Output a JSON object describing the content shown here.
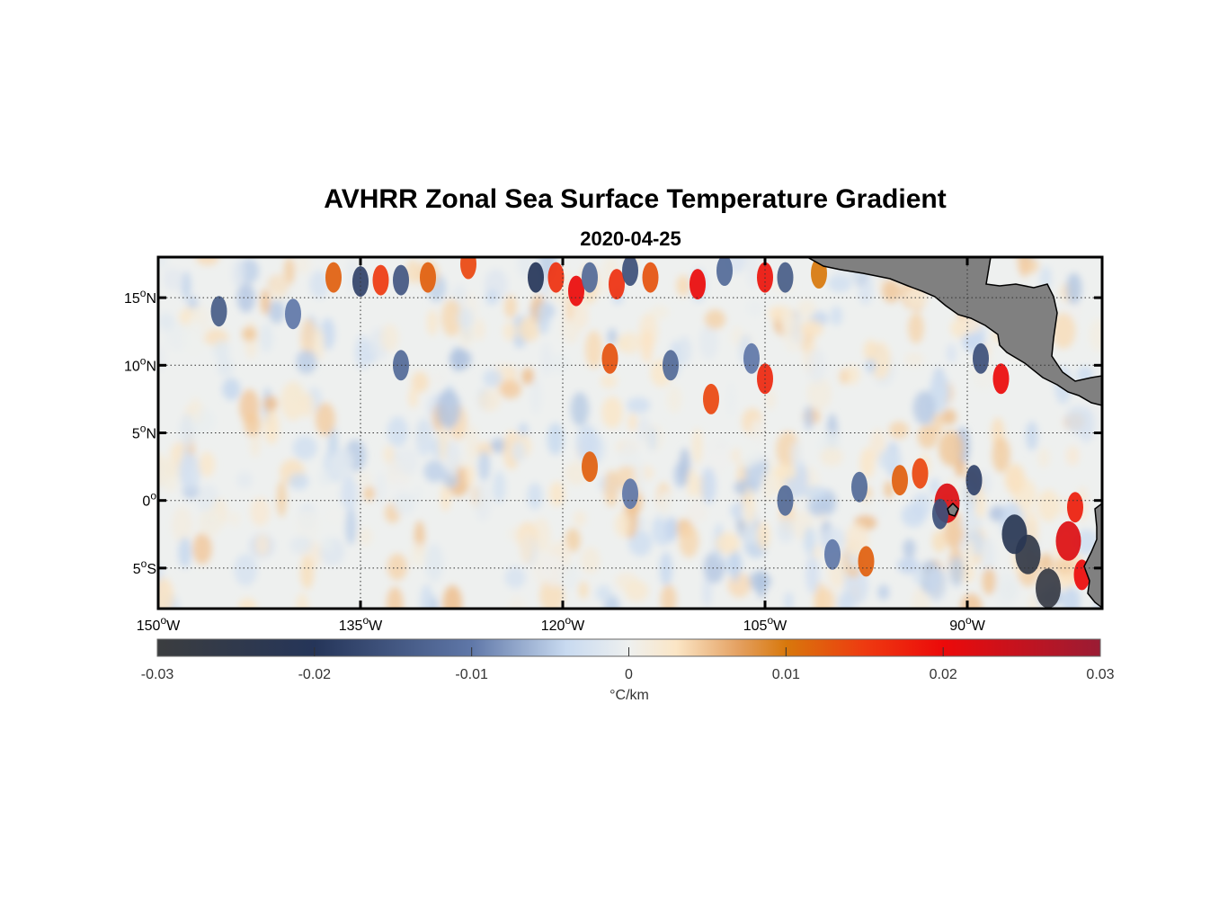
{
  "title": "AVHRR Zonal Sea Surface Temperature Gradient",
  "subtitle": "2020-04-25",
  "map": {
    "projection": "equirectangular",
    "lon_range": [
      -150,
      -80
    ],
    "lat_range": [
      -8,
      18
    ],
    "lon_ticks": [
      {
        "value": -150,
        "num": "150",
        "dir": "W"
      },
      {
        "value": -135,
        "num": "135",
        "dir": "W"
      },
      {
        "value": -120,
        "num": "120",
        "dir": "W"
      },
      {
        "value": -105,
        "num": "105",
        "dir": "W"
      },
      {
        "value": -90,
        "num": "90",
        "dir": "W"
      }
    ],
    "lat_ticks": [
      {
        "value": 15,
        "num": "15",
        "dir": "N"
      },
      {
        "value": 10,
        "num": "10",
        "dir": "N"
      },
      {
        "value": 5,
        "num": "5",
        "dir": "N"
      },
      {
        "value": 0,
        "num": "0",
        "dir": ""
      },
      {
        "value": -5,
        "num": "5",
        "dir": "S"
      }
    ],
    "grid": "dotted",
    "land_color": "#808080",
    "ocean_background": "#eef0ef"
  },
  "colorbar": {
    "label": "°C/km",
    "range": [
      -0.03,
      0.03
    ],
    "ticks": [
      {
        "value": -0.03,
        "label": "-0.03"
      },
      {
        "value": -0.02,
        "label": "-0.02"
      },
      {
        "value": -0.01,
        "label": "-0.01"
      },
      {
        "value": 0,
        "label": "0"
      },
      {
        "value": 0.01,
        "label": "0.01"
      },
      {
        "value": 0.02,
        "label": "0.02"
      },
      {
        "value": 0.03,
        "label": "0.03"
      }
    ],
    "stops": [
      {
        "value": -0.03,
        "color": "#3b3d3f"
      },
      {
        "value": -0.02,
        "color": "#253559"
      },
      {
        "value": -0.01,
        "color": "#5f77a8"
      },
      {
        "value": -0.004,
        "color": "#c8daf0"
      },
      {
        "value": 0,
        "color": "#eef0ef"
      },
      {
        "value": 0.003,
        "color": "#fbe6c6"
      },
      {
        "value": 0.007,
        "color": "#e4a060"
      },
      {
        "value": 0.01,
        "color": "#d8780c"
      },
      {
        "value": 0.015,
        "color": "#ee3a10"
      },
      {
        "value": 0.02,
        "color": "#ec0a0a"
      },
      {
        "value": 0.03,
        "color": "#9a1c34"
      }
    ]
  },
  "chart_data": {
    "type": "heatmap",
    "title": "AVHRR Zonal Sea Surface Temperature Gradient",
    "subtitle": "2020-04-25",
    "unit": "°C/km",
    "features": [
      {
        "lon": -137,
        "lat": 16.5,
        "value": 0.012
      },
      {
        "lon": -135,
        "lat": 16.2,
        "value": -0.018
      },
      {
        "lon": -133.5,
        "lat": 16.3,
        "value": 0.015
      },
      {
        "lon": -132,
        "lat": 16.3,
        "value": -0.015
      },
      {
        "lon": -130,
        "lat": 16.5,
        "value": 0.012
      },
      {
        "lon": -127,
        "lat": 17.5,
        "value": 0.014
      },
      {
        "lon": -122,
        "lat": 16.5,
        "value": -0.02
      },
      {
        "lon": -120.5,
        "lat": 16.5,
        "value": 0.016
      },
      {
        "lon": -119,
        "lat": 15.5,
        "value": 0.02
      },
      {
        "lon": -118,
        "lat": 16.5,
        "value": -0.012
      },
      {
        "lon": -116,
        "lat": 16.0,
        "value": 0.016
      },
      {
        "lon": -115,
        "lat": 17.0,
        "value": -0.016
      },
      {
        "lon": -113.5,
        "lat": 16.5,
        "value": 0.013
      },
      {
        "lon": -110,
        "lat": 16.0,
        "value": 0.02
      },
      {
        "lon": -108,
        "lat": 17.0,
        "value": -0.012
      },
      {
        "lon": -105,
        "lat": 16.5,
        "value": 0.019
      },
      {
        "lon": -103.5,
        "lat": 16.5,
        "value": -0.014
      },
      {
        "lon": -101,
        "lat": 16.8,
        "value": 0.01
      },
      {
        "lon": -145.5,
        "lat": 14.0,
        "value": -0.014
      },
      {
        "lon": -140,
        "lat": 13.8,
        "value": -0.01
      },
      {
        "lon": -132,
        "lat": 10.0,
        "value": -0.012
      },
      {
        "lon": -116.5,
        "lat": 10.5,
        "value": 0.013
      },
      {
        "lon": -112,
        "lat": 10.0,
        "value": -0.012
      },
      {
        "lon": -109,
        "lat": 7.5,
        "value": 0.014
      },
      {
        "lon": -105,
        "lat": 9.0,
        "value": 0.017
      },
      {
        "lon": -106,
        "lat": 10.5,
        "value": -0.01
      },
      {
        "lon": -118,
        "lat": 2.5,
        "value": 0.012
      },
      {
        "lon": -115,
        "lat": 0.5,
        "value": -0.01
      },
      {
        "lon": -103.5,
        "lat": 0.0,
        "value": -0.012
      },
      {
        "lon": -98,
        "lat": 1.0,
        "value": -0.012
      },
      {
        "lon": -95,
        "lat": 1.5,
        "value": 0.012
      },
      {
        "lon": -93.5,
        "lat": 2.0,
        "value": 0.014
      },
      {
        "lon": -91.5,
        "lat": -0.2,
        "value": 0.022
      },
      {
        "lon": -92,
        "lat": -1.0,
        "value": -0.016
      },
      {
        "lon": -89.5,
        "lat": 1.5,
        "value": -0.018
      },
      {
        "lon": -87.5,
        "lat": 9.0,
        "value": 0.02
      },
      {
        "lon": -89,
        "lat": 10.5,
        "value": -0.016
      },
      {
        "lon": -85.5,
        "lat": -4.0,
        "value": -0.026
      },
      {
        "lon": -86.5,
        "lat": -2.5,
        "value": -0.022
      },
      {
        "lon": -84,
        "lat": -6.5,
        "value": -0.028
      },
      {
        "lon": -82.5,
        "lat": -3.0,
        "value": 0.022
      },
      {
        "lon": -82,
        "lat": -0.5,
        "value": 0.018
      },
      {
        "lon": -81.5,
        "lat": -5.5,
        "value": 0.02
      },
      {
        "lon": -97.5,
        "lat": -4.5,
        "value": 0.012
      },
      {
        "lon": -100,
        "lat": -4.0,
        "value": -0.01
      }
    ]
  }
}
